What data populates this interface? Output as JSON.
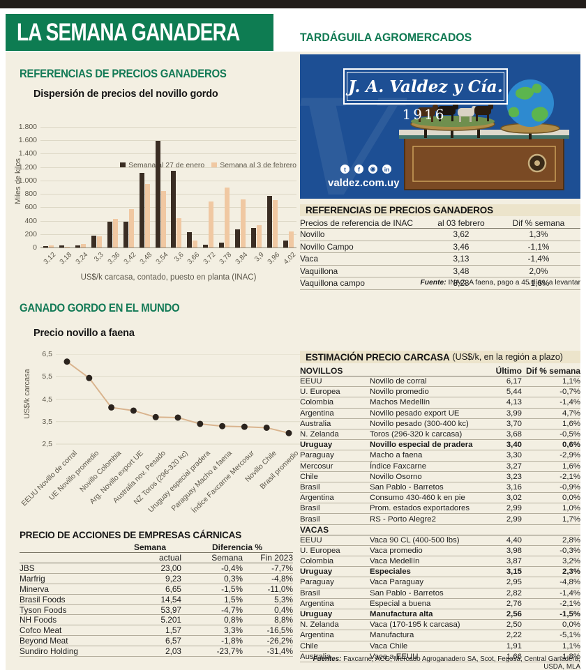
{
  "header": {
    "title": "LA SEMANA GANADERA",
    "brand": "TARDÁGUILA AGROMERCADOS"
  },
  "colors": {
    "brand_green": "#0e7c52",
    "heading_green": "#137a56",
    "panel_cream": "#f3efe2",
    "band_beige": "#ece4cb",
    "bar_dark": "#3a2d23",
    "bar_light": "#f0c8a2",
    "line": "#d9b48e",
    "dot": "#2b241e",
    "ad_blue": "#1d4f94"
  },
  "left": {
    "section1_title": "REFERENCIAS DE PRECIOS GANADEROS",
    "section2_title": "GANADO GORDO EN EL MUNDO",
    "stocks_title": "PRECIO DE ACCIONES DE EMPRESAS CÁRNICAS"
  },
  "chart_data": [
    {
      "type": "bar",
      "title": "Dispersión de precios del novillo gordo",
      "xlabel": "US$/k carcasa, contado, puesto en planta (INAC)",
      "ylabel": "Miles de kilos",
      "ylim": [
        0,
        1800
      ],
      "ytick_labels": [
        "0",
        "200",
        "400",
        "600",
        "800",
        "1.000",
        "1.200",
        "1.400",
        "1.600",
        "1.800"
      ],
      "categories": [
        "3,12",
        "3,18",
        "3,24",
        "3,3",
        "3,36",
        "3,42",
        "3,48",
        "3,54",
        "3,6",
        "3,66",
        "3,72",
        "3,78",
        "3,84",
        "3,9",
        "3,96",
        "4,02"
      ],
      "series": [
        {
          "name": "Semana al 27 de enero",
          "color": "#3a2d23",
          "values": [
            20,
            30,
            30,
            180,
            390,
            390,
            1110,
            1590,
            1140,
            230,
            40,
            70,
            270,
            295,
            770,
            100
          ]
        },
        {
          "name": "Semana al 3 de febrero",
          "color": "#f0c8a2",
          "values": [
            30,
            15,
            50,
            165,
            425,
            575,
            945,
            840,
            440,
            100,
            690,
            895,
            720,
            330,
            705,
            240
          ]
        }
      ],
      "legend_position": "top-right",
      "grid": true
    },
    {
      "type": "line",
      "title": "Precio novillo a faena",
      "ylabel": "US$/k carcasa",
      "ylim": [
        2.5,
        6.5
      ],
      "ytick_labels": [
        "6,5",
        "5,5",
        "4,5",
        "3,5",
        "2,5"
      ],
      "categories": [
        "EEUU Novillo de corral",
        "UE Novillo promedio",
        "Novillo Colombia",
        "Arg. Novillo export UE",
        "Australia nov. Pesado",
        "NZ Toros (296-320 kc)",
        "Uruguay especial pradera",
        "Paraguay Macho a faena",
        "Índice Faxcarne Mercosur",
        "Novillo Chile",
        "Brasil promedio"
      ],
      "values": [
        6.17,
        5.44,
        4.13,
        3.99,
        3.7,
        3.68,
        3.4,
        3.3,
        3.27,
        3.23,
        2.99
      ],
      "grid": true
    }
  ],
  "ad": {
    "logo": "J. A. Valdez y Cía.",
    "year": "1916",
    "website": "valdez.com.uy",
    "social_icons": [
      "t",
      "f",
      "◉",
      "in"
    ],
    "watermark": "V"
  },
  "inac_table": {
    "title": "REFERENCIAS DE PRECIOS GANADEROS",
    "headers": [
      "Precios de referencia de INAC",
      "al   03 febrero",
      "Dif % semana"
    ],
    "rows": [
      [
        "Novillo",
        "3,62",
        "1,3%"
      ],
      [
        "Novillo Campo",
        "3,46",
        "-1,1%"
      ],
      [
        "Vaca",
        "3,13",
        "-1,4%"
      ],
      [
        "Vaquillona",
        "3,48",
        "2,0%"
      ],
      [
        "Vaquillona campo",
        "3,28",
        "-1,6%"
      ]
    ],
    "source_label": "Fuente:",
    "source_text": " INAC. A faena, pago a 45 días, a levantar"
  },
  "carcass_table": {
    "title": "ESTIMACIÓN PRECIO CARCASA",
    "subtitle": "(US$/k, en la región a plazo)",
    "col_last": "Último",
    "col_dif": "Dif % semana",
    "sections": [
      {
        "name": "NOVILLOS",
        "rows": [
          {
            "country": "EEUU",
            "detail": "Novillo de corral",
            "last": "6,17",
            "dif": "1,1%",
            "bold": false
          },
          {
            "country": "U. Europea",
            "detail": "Novillo promedio",
            "last": "5,44",
            "dif": "-0,7%",
            "bold": false
          },
          {
            "country": "Colombia",
            "detail": "Machos Medellín",
            "last": "4,13",
            "dif": "-1,4%",
            "bold": false
          },
          {
            "country": "Argentina",
            "detail": "Novillo pesado export UE",
            "last": "3,99",
            "dif": "4,7%",
            "bold": false
          },
          {
            "country": "Australia",
            "detail": "Novillo pesado (300-400 kc)",
            "last": "3,70",
            "dif": "1,6%",
            "bold": false
          },
          {
            "country": "N. Zelanda",
            "detail": "Toros (296-320 k carcasa)",
            "last": "3,68",
            "dif": "-0,5%",
            "bold": false
          },
          {
            "country": "Uruguay",
            "detail": "Novillo especial de pradera",
            "last": "3,40",
            "dif": "0,6%",
            "bold": true
          },
          {
            "country": "Paraguay",
            "detail": "Macho a faena",
            "last": "3,30",
            "dif": "-2,9%",
            "bold": false
          },
          {
            "country": "Mercosur",
            "detail": "Índice Faxcarne",
            "last": "3,27",
            "dif": "1,6%",
            "bold": false
          },
          {
            "country": "Chile",
            "detail": "Novillo Osorno",
            "last": "3,23",
            "dif": "-2,1%",
            "bold": false
          },
          {
            "country": "Brasil",
            "detail": "San Pablo - Barretos",
            "last": "3,16",
            "dif": "-0,9%",
            "bold": false
          },
          {
            "country": "Argentina",
            "detail": "Consumo 430-460 k en pie",
            "last": "3,02",
            "dif": "0,0%",
            "bold": false
          },
          {
            "country": "Brasil",
            "detail": "Prom. estados exportadores",
            "last": "2,99",
            "dif": "1,0%",
            "bold": false
          },
          {
            "country": "Brasil",
            "detail": "RS - Porto Alegre2",
            "last": "2,99",
            "dif": "1,7%",
            "bold": false
          }
        ]
      },
      {
        "name": "VACAS",
        "rows": [
          {
            "country": "EEUU",
            "detail": "Vaca 90 CL (400-500 lbs)",
            "last": "4,40",
            "dif": "2,8%",
            "bold": false
          },
          {
            "country": "U. Europea",
            "detail": "Vaca promedio",
            "last": "3,98",
            "dif": "-0,3%",
            "bold": false
          },
          {
            "country": "Colombia",
            "detail": "Vaca Medellín",
            "last": "3,87",
            "dif": "3,2%",
            "bold": false
          },
          {
            "country": "Uruguay",
            "detail": "Especiales",
            "last": "3,15",
            "dif": "2,3%",
            "bold": true
          },
          {
            "country": "Paraguay",
            "detail": "Vaca Paraguay",
            "last": "2,95",
            "dif": "-4,8%",
            "bold": false
          },
          {
            "country": "Brasil",
            "detail": "San Pablo - Barretos",
            "last": "2,82",
            "dif": "-1,4%",
            "bold": false
          },
          {
            "country": "Argentina",
            "detail": "Especial a buena",
            "last": "2,76",
            "dif": "-2,1%",
            "bold": false
          },
          {
            "country": "Uruguay",
            "detail": "Manufactura alta",
            "last": "2,56",
            "dif": "-1,5%",
            "bold": true
          },
          {
            "country": "N. Zelanda",
            "detail": "Vaca (170-195 k carcasa)",
            "last": "2,50",
            "dif": "0,0%",
            "bold": false
          },
          {
            "country": "Argentina",
            "detail": "Manufactura",
            "last": "2,22",
            "dif": "-5,1%",
            "bold": false
          },
          {
            "country": "Chile",
            "detail": "Vaca Chile",
            "last": "1,91",
            "dif": "1,1%",
            "bold": false
          },
          {
            "country": "Australia",
            "detail": "Vaca a EEUU",
            "last": "1,66",
            "dif": "-1,8%",
            "bold": false
          }
        ]
      }
    ],
    "sources_label": "Fuentes:",
    "sources_text": " Faxcarne, ACG, Mercado Agroganadero SA, Scot, Fegosa, Central Ganadera, USDA, MLA"
  },
  "stocks_table": {
    "title": "PRECIO DE ACCIONES DE EMPRESAS CÁRNICAS",
    "group_headers": [
      "Semana",
      "Diferencia %"
    ],
    "sub_headers": [
      "actual",
      "Semana",
      "Fin 2023"
    ],
    "rows": [
      [
        "JBS",
        "23,00",
        "-0,4%",
        "-7,7%"
      ],
      [
        "Marfrig",
        "9,23",
        "0,3%",
        "-4,8%"
      ],
      [
        "Minerva",
        "6,65",
        "-1,5%",
        "-11,0%"
      ],
      [
        "Brasil Foods",
        "14,54",
        "1,5%",
        "5,3%"
      ],
      [
        "Tyson Foods",
        "53,97",
        "-4,7%",
        "0,4%"
      ],
      [
        "NH Foods",
        "5.201",
        "0,8%",
        "8,8%"
      ],
      [
        "Cofco Meat",
        "1,57",
        "3,3%",
        "-16,5%"
      ],
      [
        "Beyond Meat",
        "6,57",
        "-1,8%",
        "-26,2%"
      ],
      [
        "Sundiro Holding",
        "2,03",
        "-23,7%",
        "-31,4%"
      ]
    ]
  }
}
